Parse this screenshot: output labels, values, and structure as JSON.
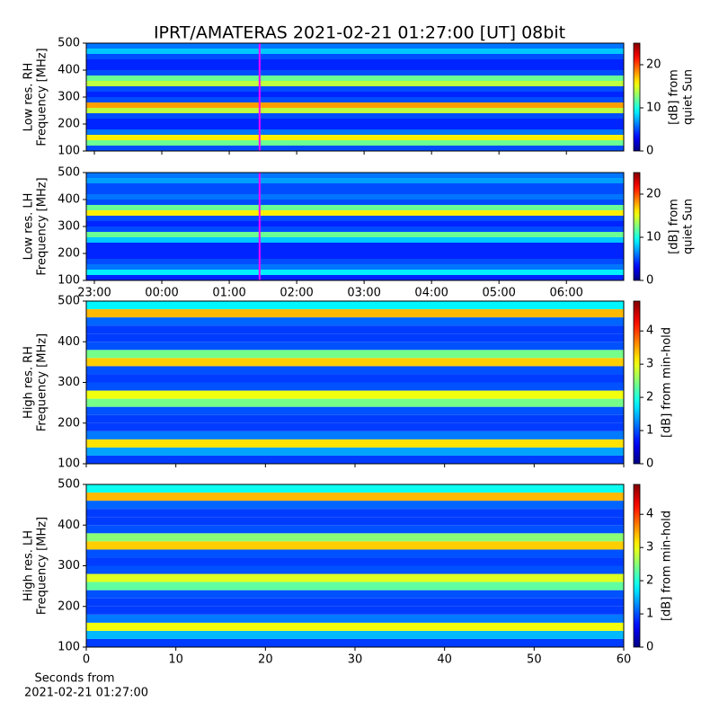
{
  "title": "IPRT/AMATERAS 2021-02-21 01:27:00 [UT]   08bit",
  "chart_data": [
    {
      "type": "heatmap",
      "ylabel": [
        "Low res. RH",
        "Frequency [MHz]"
      ],
      "xlim": [
        22.88,
        30.85
      ],
      "xticks": [
        {
          "value": 23,
          "label": "23:00"
        },
        {
          "value": 24,
          "label": "00:00"
        },
        {
          "value": 25,
          "label": "01:00"
        },
        {
          "value": 26,
          "label": "02:00"
        },
        {
          "value": 27,
          "label": "03:00"
        },
        {
          "value": 28,
          "label": "04:00"
        },
        {
          "value": 29,
          "label": "05:00"
        },
        {
          "value": 30,
          "label": "06:00"
        }
      ],
      "show_xticklabels": false,
      "ylim": [
        100,
        500
      ],
      "yticks": [
        100,
        200,
        300,
        400,
        500
      ],
      "y_bins": [
        100,
        120,
        140,
        160,
        180,
        200,
        220,
        240,
        260,
        280,
        300,
        320,
        340,
        360,
        380,
        400,
        420,
        440,
        460,
        480,
        500
      ],
      "values": [
        5,
        12,
        16,
        6,
        4,
        4,
        5,
        14,
        18,
        5,
        4,
        5,
        14,
        12,
        5,
        4,
        4,
        5,
        8,
        6
      ],
      "clim": [
        0,
        25
      ],
      "cticks": [
        0,
        10,
        20
      ],
      "clabel": [
        "[dB] from",
        "quiet Sun"
      ],
      "marker_x": 25.45,
      "marker_color": "#ff00ff"
    },
    {
      "type": "heatmap",
      "ylabel": [
        "Low res. LH",
        "Frequency [MHz]"
      ],
      "xlim": [
        22.88,
        30.85
      ],
      "xticks": [
        {
          "value": 23,
          "label": "23:00"
        },
        {
          "value": 24,
          "label": "00:00"
        },
        {
          "value": 25,
          "label": "01:00"
        },
        {
          "value": 26,
          "label": "02:00"
        },
        {
          "value": 27,
          "label": "03:00"
        },
        {
          "value": 28,
          "label": "04:00"
        },
        {
          "value": 29,
          "label": "05:00"
        },
        {
          "value": 30,
          "label": "06:00"
        }
      ],
      "show_xticklabels": true,
      "ylim": [
        100,
        500
      ],
      "yticks": [
        100,
        200,
        300,
        400,
        500
      ],
      "y_bins": [
        100,
        120,
        140,
        160,
        180,
        200,
        220,
        240,
        260,
        280,
        300,
        320,
        340,
        360,
        380,
        400,
        420,
        440,
        460,
        480,
        500
      ],
      "values": [
        4,
        9,
        6,
        5,
        4,
        4,
        4,
        8,
        12,
        5,
        4,
        5,
        16,
        12,
        5,
        6,
        5,
        5,
        7,
        6
      ],
      "clim": [
        0,
        25
      ],
      "cticks": [
        0,
        10,
        20
      ],
      "clabel": [
        "[dB] from",
        "quiet Sun"
      ],
      "marker_x": 25.45,
      "marker_color": "#ff00ff"
    },
    {
      "type": "heatmap",
      "ylabel": [
        "High res. RH",
        "Frequency [MHz]"
      ],
      "xlim": [
        0,
        60
      ],
      "xticks": [
        0,
        10,
        20,
        30,
        40,
        50,
        60
      ],
      "show_xticklabels": false,
      "ylim": [
        100,
        500
      ],
      "yticks": [
        100,
        200,
        300,
        400,
        500
      ],
      "y_bins": [
        100,
        120,
        140,
        160,
        180,
        200,
        220,
        240,
        260,
        280,
        300,
        320,
        340,
        360,
        380,
        400,
        420,
        440,
        460,
        480,
        500
      ],
      "values": [
        0.9,
        1.4,
        3.2,
        1.2,
        0.9,
        0.9,
        1.0,
        2.4,
        3.0,
        1.0,
        0.9,
        1.0,
        3.3,
        2.4,
        1.0,
        0.9,
        0.9,
        1.1,
        3.4,
        1.8
      ],
      "clim": [
        0,
        4.9
      ],
      "cticks": [
        0,
        1,
        2,
        3,
        4
      ],
      "clabel": [
        "[dB] from min-hold"
      ]
    },
    {
      "type": "heatmap",
      "ylabel": [
        "High res. LH",
        "Frequency [MHz]"
      ],
      "xlim": [
        0,
        60
      ],
      "xticks": [
        0,
        10,
        20,
        30,
        40,
        50,
        60
      ],
      "show_xticklabels": true,
      "xlabel": [
        "Seconds from",
        "2021-02-21 01:27:00"
      ],
      "ylim": [
        100,
        500
      ],
      "yticks": [
        100,
        200,
        300,
        400,
        500
      ],
      "y_bins": [
        100,
        120,
        140,
        160,
        180,
        200,
        220,
        240,
        260,
        280,
        300,
        320,
        340,
        360,
        380,
        400,
        420,
        440,
        460,
        480,
        500
      ],
      "values": [
        0.9,
        1.5,
        3.0,
        1.2,
        0.9,
        0.9,
        1.0,
        2.3,
        2.9,
        1.0,
        0.9,
        1.0,
        3.3,
        2.5,
        1.0,
        0.9,
        0.9,
        1.1,
        3.4,
        1.9
      ],
      "clim": [
        0,
        4.9
      ],
      "cticks": [
        0,
        1,
        2,
        3,
        4
      ],
      "clabel": [
        "[dB] from min-hold"
      ]
    }
  ]
}
